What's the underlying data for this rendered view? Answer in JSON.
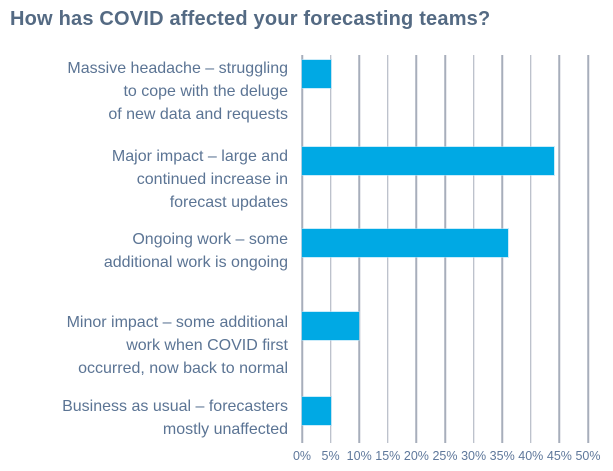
{
  "chart_data": {
    "type": "bar",
    "orientation": "horizontal",
    "title": "How has COVID affected your forecasting teams?",
    "categories": [
      "Massive headache – struggling to cope with the deluge of new data and requests",
      "Major impact – large and continued increase in forecast updates",
      "Ongoing work – some additional work is ongoing",
      "Minor impact – some additional work when COVID first occurred, now back to normal",
      "Business as usual – forecasters mostly unaffected"
    ],
    "category_lines": [
      [
        "Massive headache – struggling",
        "to cope with the deluge",
        "of new data and requests"
      ],
      [
        "Major impact – large and",
        "continued increase in",
        "forecast updates"
      ],
      [
        "Ongoing work – some",
        "additional work is ongoing"
      ],
      [
        "Minor impact – some additional",
        "work when COVID first",
        "occurred, now back to normal"
      ],
      [
        "Business as usual – forecasters",
        "mostly unaffected"
      ]
    ],
    "values": [
      5,
      44,
      36,
      10,
      5
    ],
    "unit": "%",
    "xlabel": "",
    "ylabel": "",
    "xlim": [
      0,
      50
    ],
    "x_ticks": [
      "0%",
      "5%",
      "10%",
      "15%",
      "20%",
      "25%",
      "30%",
      "35%",
      "40%",
      "45%",
      "50%"
    ],
    "grid": true,
    "legend_position": "none",
    "colors": {
      "bar": "#00A9E4",
      "gridline": "#A7AEBB",
      "title": "#546A83",
      "category_label": "#5B7494",
      "tick_label": "#5F789B",
      "background": "#FFFFFF"
    }
  }
}
